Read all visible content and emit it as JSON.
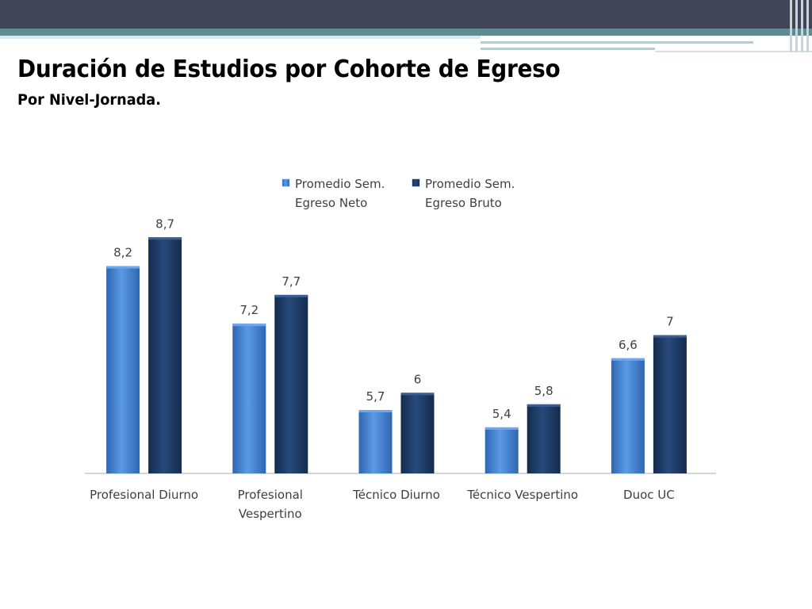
{
  "slide": {
    "title": "Duración de Estudios por Cohorte de Egreso",
    "subtitle": "Por Nivel-Jornada."
  },
  "colors": {
    "header": "#424557",
    "accent": "#5f8c93",
    "series_neto": "#4a86d6",
    "series_bruto": "#1f3c66"
  },
  "chart_data": {
    "type": "bar",
    "categories": [
      "Profesional Diurno",
      "Profesional Vespertino",
      "Técnico Diurno",
      "Técnico Vespertino",
      "Duoc UC"
    ],
    "category_lines": [
      [
        "Profesional Diurno"
      ],
      [
        "Profesional",
        "Vespertino"
      ],
      [
        "Técnico Diurno"
      ],
      [
        "Técnico Vespertino"
      ],
      [
        "Duoc UC"
      ]
    ],
    "series": [
      {
        "name": "Promedio Sem. Egreso Neto",
        "legend_lines": [
          "Promedio Sem.",
          "Egreso Neto"
        ],
        "values": [
          8.2,
          7.2,
          5.7,
          5.4,
          6.6
        ],
        "labels": [
          "8,2",
          "7,2",
          "5,7",
          "5,4",
          "6,6"
        ]
      },
      {
        "name": "Promedio Sem. Egreso Bruto",
        "legend_lines": [
          "Promedio Sem.",
          "Egreso Bruto"
        ],
        "values": [
          8.7,
          7.7,
          6,
          5.8,
          7
        ],
        "labels": [
          "8,7",
          "7,7",
          "6",
          "5,8",
          "7"
        ]
      }
    ],
    "ylim": [
      4.6,
      8.8
    ],
    "legend": "top",
    "grid": false
  }
}
